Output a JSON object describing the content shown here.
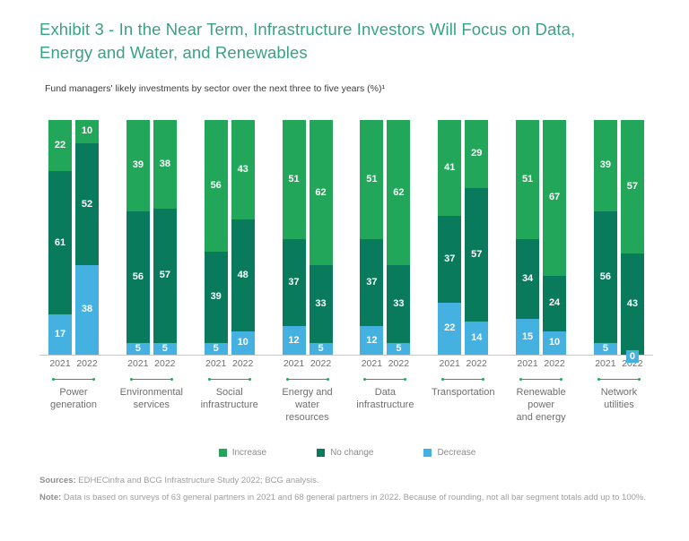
{
  "header": {
    "title": "Exhibit 3 - In the Near Term, Infrastructure Investors Will Focus on Data,\nEnergy and Water, and Renewables",
    "subtitle": "Fund managers' likely investments by sector over the next three to five years (%)¹"
  },
  "chart_data": {
    "type": "bar",
    "stacked": true,
    "unit": "%",
    "ylim": [
      0,
      100
    ],
    "grid": false,
    "legend_position": "bottom",
    "years": [
      "2021",
      "2022"
    ],
    "colors": {
      "increase": "#22a75a",
      "no_change": "#0a7a5c",
      "decrease": "#45b1e0",
      "title_accent": "#3aa284",
      "axis": "#c7c7c7"
    },
    "segment_order_top_to_bottom": [
      "increase",
      "no_change",
      "decrease"
    ],
    "groups": [
      {
        "label": "Power\ngeneration",
        "bars": [
          {
            "year": "2021",
            "increase": 22,
            "no_change": 61,
            "decrease": 17
          },
          {
            "year": "2022",
            "increase": 10,
            "no_change": 52,
            "decrease": 38
          }
        ]
      },
      {
        "label": "Environmental\nservices",
        "bars": [
          {
            "year": "2021",
            "increase": 39,
            "no_change": 56,
            "decrease": 5
          },
          {
            "year": "2022",
            "increase": 38,
            "no_change": 57,
            "decrease": 5
          }
        ]
      },
      {
        "label": "Social\ninfrastructure",
        "bars": [
          {
            "year": "2021",
            "increase": 56,
            "no_change": 39,
            "decrease": 5
          },
          {
            "year": "2022",
            "increase": 43,
            "no_change": 48,
            "decrease": 10
          }
        ]
      },
      {
        "label": "Energy and\nwater\nresources",
        "bars": [
          {
            "year": "2021",
            "increase": 51,
            "no_change": 37,
            "decrease": 12
          },
          {
            "year": "2022",
            "increase": 62,
            "no_change": 33,
            "decrease": 5
          }
        ]
      },
      {
        "label": "Data\ninfrastructure",
        "bars": [
          {
            "year": "2021",
            "increase": 51,
            "no_change": 37,
            "decrease": 12
          },
          {
            "year": "2022",
            "increase": 62,
            "no_change": 33,
            "decrease": 5
          }
        ]
      },
      {
        "label": "Transportation",
        "bars": [
          {
            "year": "2021",
            "increase": 41,
            "no_change": 37,
            "decrease": 22
          },
          {
            "year": "2022",
            "increase": 29,
            "no_change": 57,
            "decrease": 14
          }
        ]
      },
      {
        "label": "Renewable\npower\nand energy",
        "bars": [
          {
            "year": "2021",
            "increase": 51,
            "no_change": 34,
            "decrease": 15
          },
          {
            "year": "2022",
            "increase": 67,
            "no_change": 24,
            "decrease": 10
          }
        ]
      },
      {
        "label": "Network\nutilities",
        "bars": [
          {
            "year": "2021",
            "increase": 39,
            "no_change": 56,
            "decrease": 5
          },
          {
            "year": "2022",
            "increase": 57,
            "no_change": 43,
            "decrease": 0
          }
        ]
      }
    ],
    "legend": [
      {
        "key": "increase",
        "label": "Increase",
        "color": "#22a75a"
      },
      {
        "key": "no_change",
        "label": "No change",
        "color": "#0a7a5c"
      },
      {
        "key": "decrease",
        "label": "Decrease",
        "color": "#45b1e0"
      }
    ]
  },
  "footer": {
    "sources_label": "Sources:",
    "sources_text": "EDHECinfra and BCG Infrastructure Study 2022; BCG analysis.",
    "note_label": "Note:",
    "note_text": "Data is based on surveys of 63 general partners in 2021 and 68 general partners in 2022. Because of rounding, not all bar segment totals add up to 100%."
  }
}
